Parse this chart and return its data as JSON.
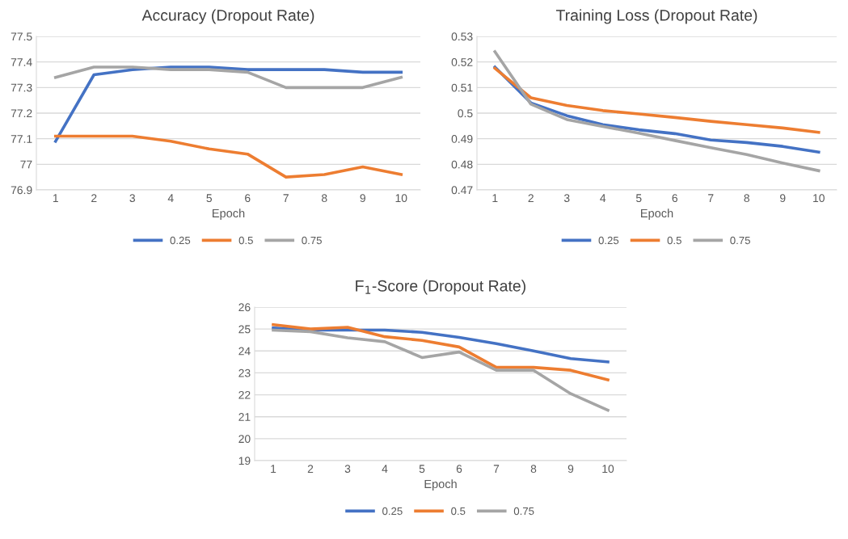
{
  "chart_data": [
    {
      "type": "line",
      "title": "Accuracy (Dropout Rate)",
      "xlabel": "Epoch",
      "categories": [
        "1",
        "2",
        "3",
        "4",
        "5",
        "6",
        "7",
        "8",
        "9",
        "10"
      ],
      "series": [
        {
          "name": "0.25",
          "color": "#4472c4",
          "values": [
            77.09,
            77.35,
            77.37,
            77.38,
            77.38,
            77.37,
            77.37,
            77.37,
            77.36,
            77.36
          ]
        },
        {
          "name": "0.5",
          "color": "#ed7d31",
          "values": [
            77.11,
            77.11,
            77.11,
            77.09,
            77.06,
            77.04,
            76.95,
            76.96,
            76.99,
            76.96
          ]
        },
        {
          "name": "0.75",
          "color": "#a5a5a5",
          "values": [
            77.34,
            77.38,
            77.38,
            77.37,
            77.37,
            77.36,
            77.3,
            77.3,
            77.3,
            77.34
          ]
        }
      ],
      "ylim": [
        76.9,
        77.5
      ],
      "yticks": [
        76.9,
        77,
        77.1,
        77.2,
        77.3,
        77.4,
        77.5
      ],
      "grid": "y",
      "legend": "bottom",
      "marker": "none",
      "line_style": "solid"
    },
    {
      "type": "line",
      "title": "Training Loss (Dropout Rate)",
      "xlabel": "Epoch",
      "categories": [
        "1",
        "2",
        "3",
        "4",
        "5",
        "6",
        "7",
        "8",
        "9",
        "10"
      ],
      "series": [
        {
          "name": "0.25",
          "color": "#4472c4",
          "values": [
            0.518,
            0.504,
            0.499,
            0.4955,
            0.4935,
            0.492,
            0.4895,
            0.4885,
            0.487,
            0.4848
          ]
        },
        {
          "name": "0.5",
          "color": "#ed7d31",
          "values": [
            0.5175,
            0.506,
            0.503,
            0.501,
            0.4997,
            0.4983,
            0.4968,
            0.4955,
            0.4942,
            0.4925
          ]
        },
        {
          "name": "0.75",
          "color": "#a5a5a5",
          "values": [
            0.524,
            0.5035,
            0.4975,
            0.4948,
            0.4922,
            0.4893,
            0.4865,
            0.4838,
            0.4805,
            0.4775
          ]
        }
      ],
      "ylim": [
        0.47,
        0.53
      ],
      "yticks": [
        0.47,
        0.48,
        0.49,
        0.5,
        0.51,
        0.52,
        0.53
      ],
      "grid": "y",
      "legend": "bottom",
      "marker": "none",
      "line_style": "solid"
    },
    {
      "type": "line",
      "title": "F$_{1}$-Score (Dropout Rate)",
      "xlabel": "Epoch",
      "categories": [
        "1",
        "2",
        "3",
        "4",
        "5",
        "6",
        "7",
        "8",
        "9",
        "10"
      ],
      "series": [
        {
          "name": "0.25",
          "color": "#4472c4",
          "values": [
            25.05,
            24.95,
            24.95,
            24.95,
            24.85,
            24.62,
            24.33,
            24.0,
            23.65,
            23.5
          ]
        },
        {
          "name": "0.5",
          "color": "#ed7d31",
          "values": [
            25.2,
            25.0,
            25.08,
            24.65,
            24.48,
            24.18,
            23.25,
            23.25,
            23.12,
            22.68
          ]
        },
        {
          "name": "0.75",
          "color": "#a5a5a5",
          "values": [
            24.95,
            24.88,
            24.6,
            24.42,
            23.7,
            23.95,
            23.12,
            23.12,
            22.05,
            21.3
          ]
        }
      ],
      "ylim": [
        19,
        26
      ],
      "yticks": [
        19,
        20,
        21,
        22,
        23,
        24,
        25,
        26
      ],
      "grid": "y",
      "legend": "bottom",
      "marker": "none",
      "line_style": "solid"
    }
  ]
}
